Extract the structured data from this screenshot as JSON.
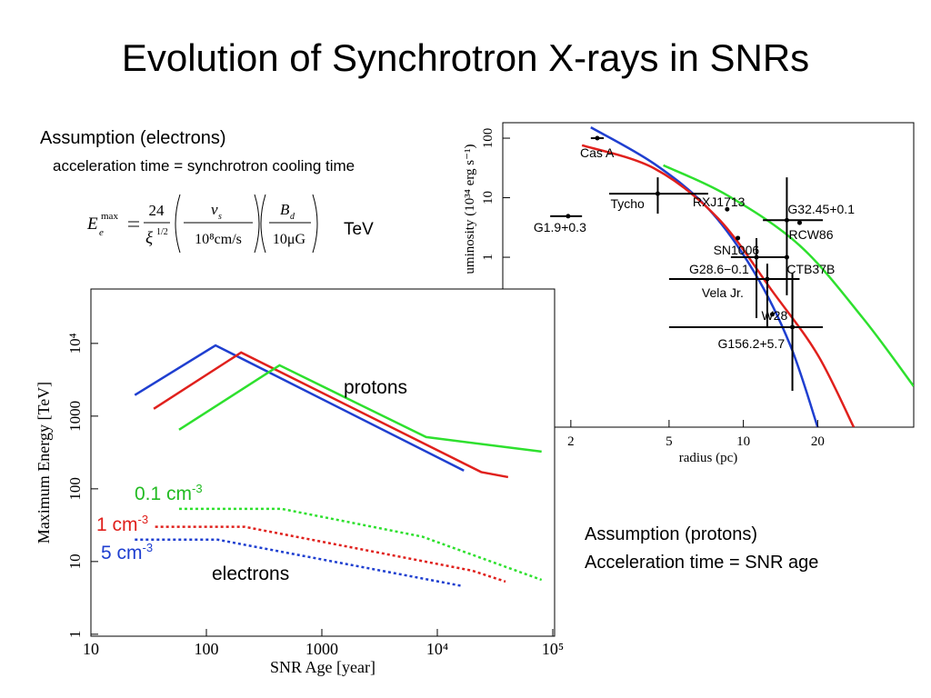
{
  "title": "Evolution of Synchrotron X-rays in SNRs",
  "electrons_heading": "Assumption (electrons)",
  "electrons_text": "acceleration time = synchrotron cooling time",
  "formula": {
    "lhs": "E",
    "lhs_sup": "max",
    "lhs_sub": "e",
    "num1": "24",
    "den1": "ξ",
    "den1_sup": "1/2",
    "num2": "v",
    "num2_sub": "s",
    "den2": "10⁸cm/s",
    "num3": "B",
    "num3_sub": "d",
    "den3": "10μG",
    "unit": "TeV"
  },
  "protons_heading": "Assumption (protons)",
  "protons_text": "Acceleration time = SNR age",
  "chart_data": [
    {
      "type": "line",
      "xlabel": "SNR Age [year]",
      "ylabel": "Maximum Energy [TeV]",
      "xscale": "log",
      "yscale": "log",
      "xlim": [
        10,
        100000
      ],
      "ylim": [
        0.94,
        56000
      ],
      "xticks": [
        10,
        100,
        1000,
        {
          "value": 10000,
          "label": "10⁴"
        },
        {
          "value": 100000,
          "label": "10⁵"
        }
      ],
      "yticks": [
        1,
        10,
        100,
        1000,
        {
          "value": 10000,
          "label": "10⁴"
        }
      ],
      "series": [
        {
          "color": "#1f3fd0",
          "style": "solid",
          "x": [
            24,
            120,
            17000
          ],
          "values": [
            1950,
            9400,
            178
          ]
        },
        {
          "color": "#e0201c",
          "style": "solid",
          "x": [
            35,
            200,
            24000,
            41000
          ],
          "values": [
            1260,
            7500,
            170,
            145
          ]
        },
        {
          "color": "#2ee02e",
          "style": "solid",
          "x": [
            58,
            430,
            8000,
            80000
          ],
          "values": [
            650,
            5000,
            515,
            325
          ]
        },
        {
          "color": "#2ee02e",
          "style": "dotted",
          "x": [
            58,
            450,
            7400,
            80000
          ],
          "values": [
            53,
            53,
            22,
            5.6
          ]
        },
        {
          "color": "#e0201c",
          "style": "dotted",
          "x": [
            36,
            215,
            20000,
            39000
          ],
          "values": [
            30,
            30,
            7.5,
            5.3
          ]
        },
        {
          "color": "#1f3fd0",
          "style": "dotted",
          "x": [
            24,
            125,
            16500
          ],
          "values": [
            20,
            20,
            4.6
          ]
        }
      ],
      "annotations": [
        {
          "text": "protons"
        },
        {
          "text": "electrons"
        },
        {
          "text": "0.1 cm",
          "sup": "-3",
          "color": "#22bb22"
        },
        {
          "text": "1 cm",
          "sup": "-3",
          "color": "#e0201c"
        },
        {
          "text": "5 cm",
          "sup": "-3",
          "color": "#1f3fd0"
        }
      ]
    },
    {
      "type": "scatter",
      "xlabel": "radius (pc)",
      "ylabel": "uminosity (10³⁴ erg s⁻¹)",
      "xscale": "log",
      "yscale": "log",
      "xlim": [
        1.06,
        49
      ],
      "ylim": [
        0.0014,
        182
      ],
      "xticks": [
        2,
        5,
        10,
        20
      ],
      "yticks": [
        1,
        10,
        100
      ],
      "series": [
        {
          "color": "#1f3fd0",
          "x": [
            2.41,
            4.36,
            7.25,
            11.1,
            15.5,
            20
          ],
          "values": [
            152,
            37,
            6.4,
            0.55,
            0.033,
            0.0014
          ]
        },
        {
          "color": "#e0201c",
          "x": [
            2.22,
            4.36,
            7.9,
            13.1,
            20,
            28
          ],
          "values": [
            76,
            31,
            4.5,
            0.27,
            0.023,
            0.0014
          ]
        },
        {
          "color": "#2ee02e",
          "x": [
            4.74,
            8.6,
            16.9,
            30.5,
            49
          ],
          "values": [
            35,
            11,
            1.58,
            0.095,
            0.0068
          ]
        }
      ],
      "points": [
        {
          "name": "Cas A",
          "x": 2.56,
          "y": 100,
          "xlo": 2.41,
          "xhi": 2.72
        },
        {
          "name": "Tycho",
          "x": 4.5,
          "y": 11.7,
          "xlo": 2.86,
          "xhi": 7.2,
          "ylo": 5.4,
          "yhi": 22
        },
        {
          "name": "RXJ1713",
          "x": 8.6,
          "y": 6.4
        },
        {
          "name": "G1.9+0.3",
          "x": 1.95,
          "y": 4.9,
          "xlo": 1.65,
          "xhi": 2.22
        },
        {
          "name": "G32.45+0.1",
          "x": 15,
          "y": 4.2,
          "xlo": 12,
          "xhi": 21,
          "ylo": 0.23,
          "yhi": 22
        },
        {
          "name": "RCW86",
          "x": 16.9,
          "y": 3.8
        },
        {
          "name": "SN1006",
          "x": 9.5,
          "y": 2.1
        },
        {
          "name": "G28.6−0.1",
          "x": 11.3,
          "y": 1,
          "xlo": 8.9,
          "xhi": 15,
          "ylo": 0.095,
          "yhi": 2.1
        },
        {
          "name": "CTB37B",
          "x": 15,
          "y": 1
        },
        {
          "name": "Vela Jr.",
          "x": 12.5,
          "y": 0.43,
          "xlo": 5.0,
          "xhi": 16.9,
          "ylo": 0.067,
          "yhi": 0.78
        },
        {
          "name": "W28",
          "x": 13.1,
          "y": 0.11
        },
        {
          "name": "G156.2+5.7",
          "x": 15.8,
          "y": 0.067,
          "xlo": 5.0,
          "xhi": 21,
          "ylo": 0.0057,
          "yhi": 0.55
        }
      ]
    }
  ]
}
